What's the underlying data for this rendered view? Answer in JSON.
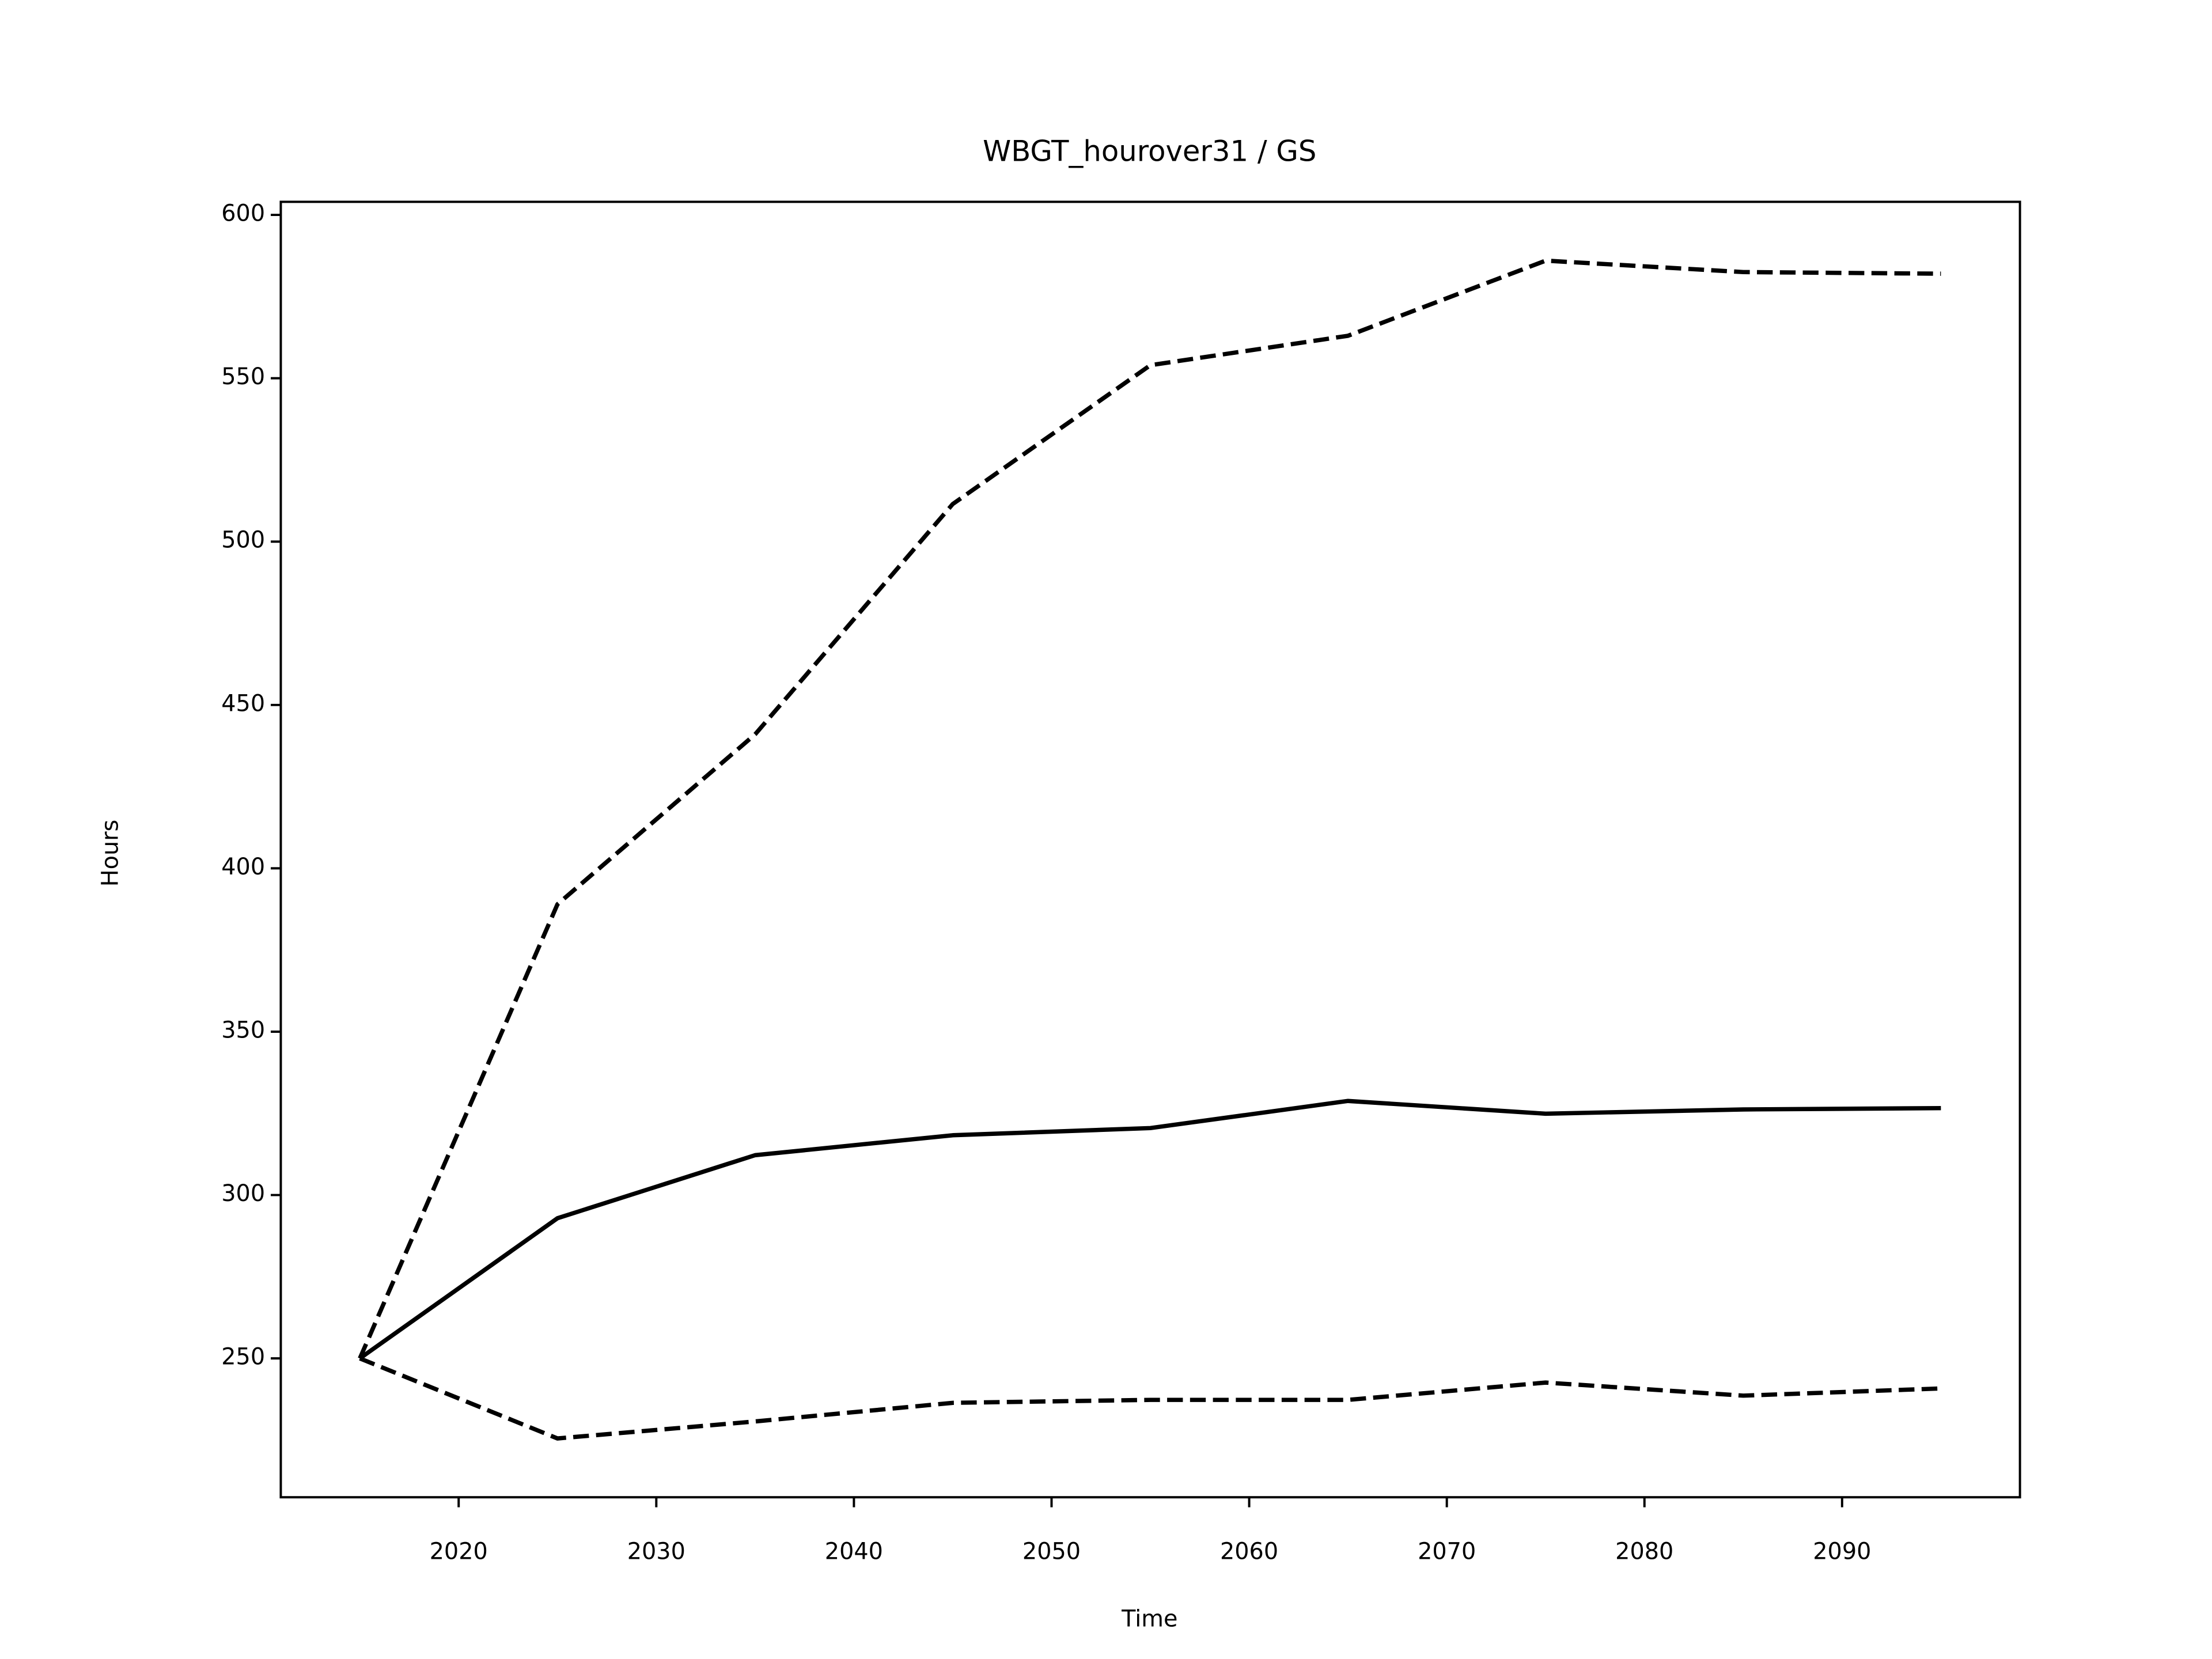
{
  "chart_data": {
    "type": "line",
    "title": "WBGT_hourover31 / GS",
    "xlabel": "Time",
    "ylabel": "Hours",
    "x": [
      2015,
      2025,
      2035,
      2045,
      2055,
      2065,
      2075,
      2085,
      2095
    ],
    "series": [
      {
        "color": "#000000",
        "linestyle": "dashed",
        "values": [
          250,
          389,
          441,
          511.5,
          554,
          563,
          586,
          582.5,
          582
        ]
      },
      {
        "color": "#000000",
        "linestyle": "solid",
        "values": [
          250,
          292.9,
          312.2,
          318.3,
          320.5,
          328.8,
          324.9,
          326.2,
          326.6
        ]
      },
      {
        "color": "#000000",
        "linestyle": "dashed",
        "values": [
          250,
          225.5,
          230.7,
          236.4,
          237.3,
          237.3,
          242.6,
          238.6,
          240.8
        ]
      }
    ],
    "xlim": [
      2011,
      2099
    ],
    "ylim": [
      207.5,
      604
    ],
    "xticks": [
      2020,
      2030,
      2040,
      2050,
      2060,
      2070,
      2080,
      2090
    ],
    "yticks": [
      250,
      300,
      350,
      400,
      450,
      500,
      550,
      600
    ],
    "grid": false
  }
}
